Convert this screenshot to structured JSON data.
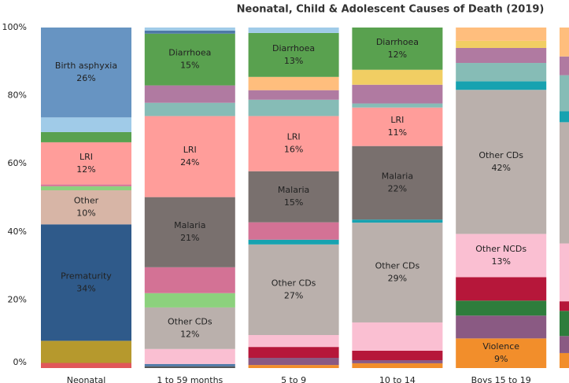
{
  "chart_data": {
    "type": "stacked_bar",
    "title": "Neonatal, Child & Adolescent Causes of Death (2019)",
    "categories": [
      "Neonatal",
      "1 to 59 months",
      "5 to 9",
      "10 to 14",
      "Boys 15 to 19",
      null
    ],
    "ylim": [
      0,
      100
    ],
    "yticks": [
      {
        "value": 0,
        "label": "0%"
      },
      {
        "value": 20,
        "label": "20%"
      },
      {
        "value": 40,
        "label": "40%"
      },
      {
        "value": 60,
        "label": "60%"
      },
      {
        "value": 80,
        "label": "80%"
      },
      {
        "value": 100,
        "label": "100%"
      }
    ],
    "stacks": [
      [
        {
          "value": 1.5,
          "color": "#e15759"
        },
        {
          "value": 6.5,
          "color": "#b6992d"
        },
        {
          "value": 34.2,
          "color": "#2f5a8a",
          "label": "Prematurity",
          "value_label": "34%"
        },
        {
          "value": 10,
          "color": "#d7b5a6",
          "label": "Other",
          "value_label": "10%"
        },
        {
          "value": 1.2,
          "color": "#8cd17d"
        },
        {
          "value": 0.5,
          "color": "#d37295"
        },
        {
          "value": 12.4,
          "color": "#ff9d9a",
          "label": "LRI",
          "value_label": "12%"
        },
        {
          "value": 3,
          "color": "#59a14f"
        },
        {
          "value": 4.3,
          "color": "#a0cbe8"
        },
        {
          "value": 26.4,
          "color": "#6794c2",
          "label": "Birth asphyxia",
          "value_label": "26%"
        }
      ],
      [
        {
          "value": 0.5,
          "color": "#555555"
        },
        {
          "value": 0.7,
          "color": "#4e79a7"
        },
        {
          "value": 4.4,
          "color": "#fabfd2"
        },
        {
          "value": 12.2,
          "color": "#bab0ac",
          "label": "Other CDs",
          "value_label": "12%"
        },
        {
          "value": 4.2,
          "color": "#8cd17d"
        },
        {
          "value": 7.6,
          "color": "#d37295"
        },
        {
          "value": 20.6,
          "color": "#79706e",
          "label": "Malaria",
          "value_label": "21%"
        },
        {
          "value": 23.8,
          "color": "#ff9d9a",
          "label": "LRI",
          "value_label": "24%"
        },
        {
          "value": 3.9,
          "color": "#86bcb6"
        },
        {
          "value": 5.1,
          "color": "#b07aa1"
        },
        {
          "value": 15.2,
          "color": "#59a14f",
          "label": "Diarrhoea",
          "value_label": "15%"
        },
        {
          "value": 0.9,
          "color": "#4e79a7"
        },
        {
          "value": 0.9,
          "color": "#a0cbe8"
        }
      ],
      [
        {
          "value": 0.9,
          "color": "#f28e2b"
        },
        {
          "value": 2.1,
          "color": "#8a5a83"
        },
        {
          "value": 3.2,
          "color": "#b6173a"
        },
        {
          "value": 3.5,
          "color": "#fabfd2"
        },
        {
          "value": 26.6,
          "color": "#bab0ac",
          "label": "Other CDs",
          "value_label": "27%"
        },
        {
          "value": 1.4,
          "color": "#17a2b0"
        },
        {
          "value": 5.1,
          "color": "#d37295"
        },
        {
          "value": 15,
          "color": "#79706e",
          "label": "Malaria",
          "value_label": "15%"
        },
        {
          "value": 16.2,
          "color": "#ff9d9a",
          "label": "LRI",
          "value_label": "16%"
        },
        {
          "value": 4.8,
          "color": "#86bcb6"
        },
        {
          "value": 2.8,
          "color": "#b07aa1"
        },
        {
          "value": 3.9,
          "color": "#ffbe7d"
        },
        {
          "value": 12.9,
          "color": "#59a14f",
          "label": "Diarrhoea",
          "value_label": "13%"
        },
        {
          "value": 1.6,
          "color": "#a0cbe8"
        }
      ],
      [
        {
          "value": 1.4,
          "color": "#f28e2b"
        },
        {
          "value": 0.9,
          "color": "#8a5a83"
        },
        {
          "value": 2.8,
          "color": "#b6173a"
        },
        {
          "value": 8.3,
          "color": "#fabfd2"
        },
        {
          "value": 29.3,
          "color": "#bab0ac",
          "label": "Other CDs",
          "value_label": "29%"
        },
        {
          "value": 0.9,
          "color": "#17a2b0"
        },
        {
          "value": 21.6,
          "color": "#79706e",
          "label": "Malaria",
          "value_label": "22%"
        },
        {
          "value": 11.3,
          "color": "#ff9d9a",
          "label": "LRI",
          "value_label": "11%"
        },
        {
          "value": 1.2,
          "color": "#86bcb6"
        },
        {
          "value": 5.5,
          "color": "#b07aa1"
        },
        {
          "value": 4.4,
          "color": "#f1ce63"
        },
        {
          "value": 12.4,
          "color": "#59a14f",
          "label": "Diarrhoea",
          "value_label": "12%"
        }
      ],
      [
        {
          "value": 8.7,
          "color": "#f28e2b",
          "label": "Violence",
          "value_label": "9%"
        },
        {
          "value": 6.7,
          "color": "#8a5a83"
        },
        {
          "value": 4.4,
          "color": "#2e7d3c"
        },
        {
          "value": 6.9,
          "color": "#b6173a"
        },
        {
          "value": 12.7,
          "color": "#fabfd2",
          "label": "Other NCDs",
          "value_label": "13%"
        },
        {
          "value": 42.3,
          "color": "#bab0ac",
          "label": "Other CDs",
          "value_label": "42%"
        },
        {
          "value": 2.5,
          "color": "#17a2b0"
        },
        {
          "value": 5.4,
          "color": "#86bcb6"
        },
        {
          "value": 4.4,
          "color": "#b07aa1"
        },
        {
          "value": 2.1,
          "color": "#f1ce63"
        },
        {
          "value": 3.9,
          "color": "#ffbe7d"
        }
      ],
      [
        {
          "value": 4.4,
          "color": "#f28e2b"
        },
        {
          "value": 5,
          "color": "#8a5a83"
        },
        {
          "value": 7.4,
          "color": "#2e7d3c"
        },
        {
          "value": 2.8,
          "color": "#b6173a"
        },
        {
          "value": 17,
          "color": "#fabfd2"
        },
        {
          "value": 35.6,
          "color": "#bab0ac"
        },
        {
          "value": 3.2,
          "color": "#17a2b0"
        },
        {
          "value": 10.6,
          "color": "#86bcb6"
        },
        {
          "value": 5.5,
          "color": "#b07aa1"
        },
        {
          "value": 8.5,
          "color": "#ffbe7d"
        }
      ]
    ]
  }
}
